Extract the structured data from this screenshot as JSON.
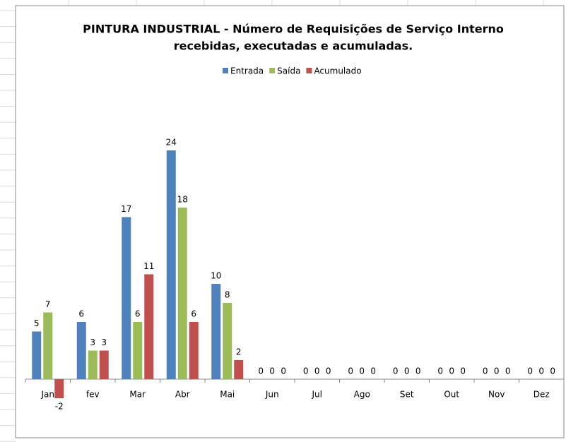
{
  "chart_data": {
    "type": "bar",
    "title": "PINTURA INDUSTRIAL - Número de  Requisições de Serviço Interno",
    "subtitle": "recebidas, executadas e acumuladas.",
    "categories": [
      "Jan",
      "fev",
      "Mar",
      "Abr",
      "Mai",
      "Jun",
      "Jul",
      "Ago",
      "Set",
      "Out",
      "Nov",
      "Dez"
    ],
    "series": [
      {
        "name": "Entrada",
        "color": "#4f81bd",
        "values": [
          5,
          6,
          17,
          24,
          10,
          0,
          0,
          0,
          0,
          0,
          0,
          0
        ]
      },
      {
        "name": "Saída",
        "color": "#9bbb59",
        "values": [
          7,
          3,
          6,
          18,
          8,
          0,
          0,
          0,
          0,
          0,
          0,
          0
        ]
      },
      {
        "name": "Acumulado",
        "color": "#c0504d",
        "values": [
          -2,
          3,
          11,
          6,
          2,
          0,
          0,
          0,
          0,
          0,
          0,
          0
        ]
      }
    ],
    "legend": "top",
    "grid": false
  }
}
